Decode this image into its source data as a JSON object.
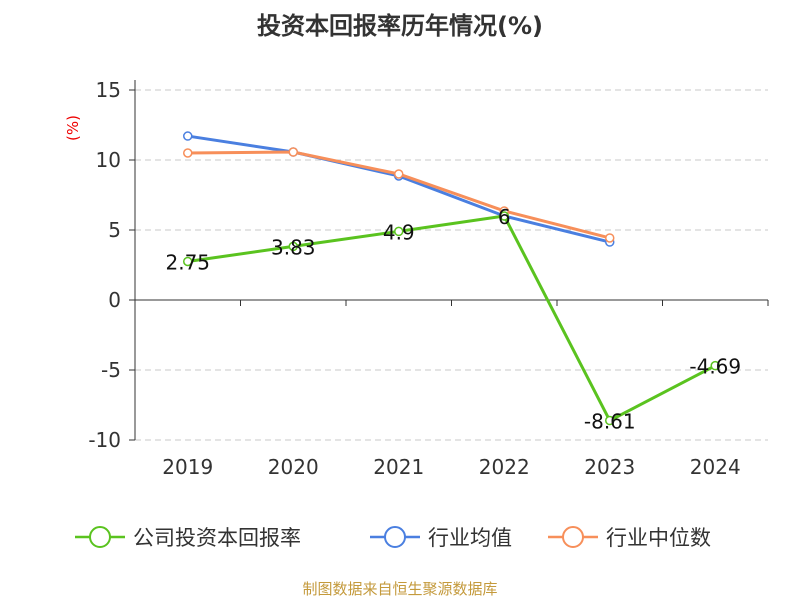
{
  "chart_data": {
    "type": "line",
    "title": "投资本回报率历年情况(%)",
    "ylabel": "(%)",
    "xlabel": "",
    "categories": [
      "2019",
      "2020",
      "2021",
      "2022",
      "2023",
      "2024"
    ],
    "ylim": [
      -10,
      15
    ],
    "yticks": [
      15,
      10,
      5,
      0,
      -5,
      -10
    ],
    "grid": true,
    "legend_position": "bottom",
    "series": [
      {
        "name": "公司投资本回报率",
        "color": "#5ac31f",
        "values": [
          2.75,
          3.83,
          4.9,
          6,
          -8.61,
          -4.69
        ],
        "labels": [
          "2.75",
          "3.83",
          "4.9",
          "6",
          "-8.61",
          "-4.69"
        ]
      },
      {
        "name": "行业均值",
        "color": "#4a7fe0",
        "values": [
          11.71,
          10.57,
          8.86,
          6.0,
          4.14,
          null
        ]
      },
      {
        "name": "行业中位数",
        "color": "#f78f5a",
        "values": [
          10.5,
          10.57,
          9.0,
          6.36,
          4.43,
          null
        ]
      }
    ]
  },
  "footer": "制图数据来自恒生聚源数据库"
}
